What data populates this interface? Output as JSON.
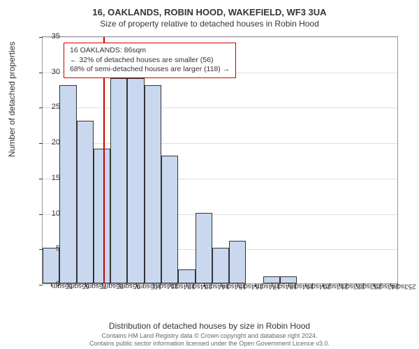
{
  "title_main": "16, OAKLANDS, ROBIN HOOD, WAKEFIELD, WF3 3UA",
  "title_sub": "Size of property relative to detached houses in Robin Hood",
  "y_axis_label": "Number of detached properties",
  "x_axis_label": "Distribution of detached houses by size in Robin Hood",
  "footer_line1": "Contains HM Land Registry data © Crown copyright and database right 2024.",
  "footer_line2": "Contains public sector information licensed under the Open Government Licence v3.0.",
  "chart": {
    "type": "histogram",
    "xlim_bins": [
      50,
      260
    ],
    "bin_width": 10,
    "x_tick_labels": [
      "55sqm",
      "65sqm",
      "75sqm",
      "85sqm",
      "95sqm",
      "105sqm",
      "114sqm",
      "124sqm",
      "134sqm",
      "144sqm",
      "154sqm",
      "164sqm",
      "174sqm",
      "184sqm",
      "194sqm",
      "204sqm",
      "213sqm",
      "223sqm",
      "233sqm",
      "243sqm",
      "253sqm"
    ],
    "ylim": [
      0,
      35
    ],
    "y_tick_step": 5,
    "y_ticks": [
      0,
      5,
      10,
      15,
      20,
      25,
      30,
      35
    ],
    "bars": [
      {
        "x": 50,
        "h": 5
      },
      {
        "x": 60,
        "h": 28
      },
      {
        "x": 70,
        "h": 23
      },
      {
        "x": 80,
        "h": 19
      },
      {
        "x": 90,
        "h": 29
      },
      {
        "x": 100,
        "h": 29
      },
      {
        "x": 110,
        "h": 28
      },
      {
        "x": 120,
        "h": 18
      },
      {
        "x": 130,
        "h": 2
      },
      {
        "x": 140,
        "h": 10
      },
      {
        "x": 150,
        "h": 5
      },
      {
        "x": 160,
        "h": 6
      },
      {
        "x": 170,
        "h": 0
      },
      {
        "x": 180,
        "h": 1
      },
      {
        "x": 190,
        "h": 1
      },
      {
        "x": 200,
        "h": 0
      },
      {
        "x": 210,
        "h": 0
      },
      {
        "x": 220,
        "h": 0
      },
      {
        "x": 230,
        "h": 0
      },
      {
        "x": 240,
        "h": 0
      },
      {
        "x": 250,
        "h": 0
      }
    ],
    "bar_fill": "#c9d8ef",
    "bar_border": "#333333",
    "ref_x": 86,
    "ref_color": "#cc0000",
    "background_color": "#ffffff",
    "grid_color": "#dddddd",
    "axis_color": "#999999",
    "tick_color": "#333333",
    "label_fontsize": 12,
    "tick_fontsize": 11,
    "title_fontsize_main": 13,
    "title_fontsize_sub": 12
  },
  "callout": {
    "line1": "16 OAKLANDS: 86sqm",
    "line2": "← 32% of detached houses are smaller (56)",
    "line3": "68% of semi-detached houses are larger (118) →",
    "border_color": "#cc0000",
    "background": "#ffffff",
    "fontsize": 10.5
  }
}
